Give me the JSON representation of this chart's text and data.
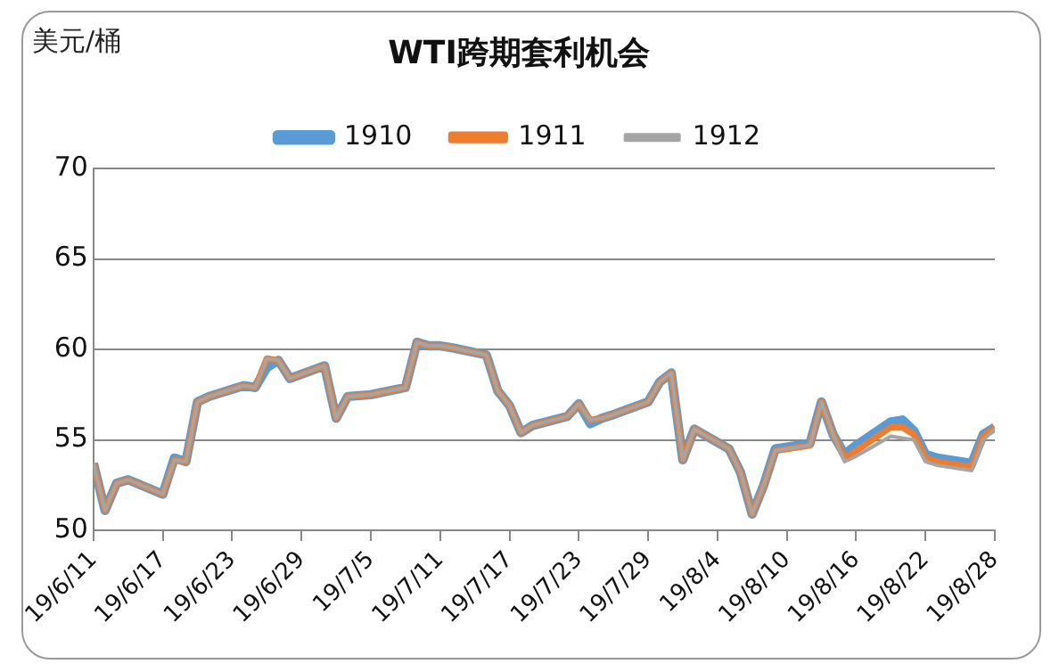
{
  "chart_data": {
    "type": "line",
    "title": "WTI跨期套利机会",
    "ylabel": "美元/桶",
    "x": [
      "--06-11",
      "--06-12",
      "--06-13",
      "--06-14",
      "--06-17",
      "--06-18",
      "--06-19",
      "--06-20",
      "--06-21",
      "--06-24",
      "--06-25",
      "--06-26",
      "--06-27",
      "--06-28",
      "--07-01",
      "--07-02",
      "--07-03",
      "--07-05",
      "--07-08",
      "--07-09",
      "--07-10",
      "--07-11",
      "--07-12",
      "--07-15",
      "--07-16",
      "--07-17",
      "--07-18",
      "--07-19",
      "--07-22",
      "--07-23",
      "--07-24",
      "--07-25",
      "--07-26",
      "--07-29",
      "--07-30",
      "--07-31",
      "--08-01",
      "--08-02",
      "--08-05",
      "--08-06",
      "--08-07",
      "--08-08",
      "--08-09",
      "--08-12",
      "--08-13",
      "--08-14",
      "--08-15",
      "--08-16",
      "--08-19",
      "--08-20",
      "--08-21",
      "--08-22",
      "--08-23",
      "--08-26",
      "--08-27",
      "--08-28"
    ],
    "series": [
      {
        "name": "1910",
        "color": "#5b9bd5",
        "values": [
          53.7,
          51.1,
          52.6,
          52.8,
          52.0,
          54.0,
          53.8,
          57.1,
          57.4,
          58.0,
          57.9,
          59.0,
          59.4,
          58.4,
          59.1,
          56.2,
          57.4,
          57.5,
          57.9,
          60.4,
          60.2,
          60.2,
          60.1,
          59.7,
          57.7,
          56.9,
          55.4,
          55.8,
          56.3,
          57.0,
          55.9,
          56.2,
          56.4,
          57.1,
          58.2,
          58.7,
          53.9,
          55.6,
          54.5,
          53.2,
          50.9,
          52.5,
          54.5,
          54.8,
          57.1,
          55.3,
          54.2,
          54.7,
          56.0,
          56.1,
          55.5,
          54.2,
          54.0,
          53.7,
          55.3,
          55.7
        ]
      },
      {
        "name": "1911",
        "color": "#ed7d31",
        "values": [
          53.7,
          51.1,
          52.6,
          52.8,
          52.0,
          53.9,
          53.8,
          57.1,
          57.4,
          58.0,
          57.9,
          59.5,
          59.4,
          58.4,
          59.1,
          56.2,
          57.4,
          57.5,
          57.9,
          60.4,
          60.2,
          60.2,
          60.1,
          59.7,
          57.7,
          56.9,
          55.4,
          55.8,
          56.3,
          57.0,
          56.1,
          56.2,
          56.4,
          57.1,
          58.2,
          58.7,
          53.9,
          55.6,
          54.5,
          53.2,
          50.9,
          52.5,
          54.4,
          54.7,
          57.1,
          55.3,
          54.0,
          54.4,
          55.7,
          55.7,
          55.3,
          54.0,
          53.8,
          53.5,
          55.2,
          55.7
        ]
      },
      {
        "name": "1912",
        "color": "#a5a5a5",
        "values": [
          53.7,
          51.1,
          52.6,
          52.8,
          52.0,
          53.9,
          53.8,
          57.1,
          57.4,
          58.0,
          57.9,
          59.5,
          59.4,
          58.4,
          59.1,
          56.2,
          57.4,
          57.5,
          57.9,
          60.4,
          60.2,
          60.2,
          60.1,
          59.7,
          57.7,
          56.9,
          55.4,
          55.8,
          56.3,
          57.0,
          56.1,
          56.2,
          56.4,
          57.1,
          58.2,
          58.7,
          53.9,
          55.6,
          54.5,
          53.2,
          50.9,
          52.5,
          54.4,
          54.7,
          57.1,
          55.3,
          53.8,
          54.1,
          55.2,
          55.1,
          55.0,
          53.8,
          53.6,
          53.3,
          55.0,
          55.6
        ]
      }
    ],
    "xlim": [
      "--06-11",
      "--08-28"
    ],
    "xticks": [
      {
        "value": "--06-11",
        "label": "19/6/11"
      },
      {
        "value": "--06-17",
        "label": "19/6/17"
      },
      {
        "value": "--06-23",
        "label": "19/6/23"
      },
      {
        "value": "--06-29",
        "label": "19/6/29"
      },
      {
        "value": "--07-05",
        "label": "19/7/5"
      },
      {
        "value": "--07-11",
        "label": "19/7/11"
      },
      {
        "value": "--07-17",
        "label": "19/7/17"
      },
      {
        "value": "--07-23",
        "label": "19/7/23"
      },
      {
        "value": "--07-29",
        "label": "19/7/29"
      },
      {
        "value": "--08-04",
        "label": "19/8/4"
      },
      {
        "value": "--08-10",
        "label": "19/8/10"
      },
      {
        "value": "--08-16",
        "label": "19/8/16"
      },
      {
        "value": "--08-22",
        "label": "19/8/22"
      },
      {
        "value": "--08-28",
        "label": "19/8/28"
      }
    ],
    "ylim": [
      50,
      70
    ],
    "yticks": [
      50,
      55,
      60,
      65,
      70
    ],
    "grid": "y",
    "legend": "top"
  }
}
